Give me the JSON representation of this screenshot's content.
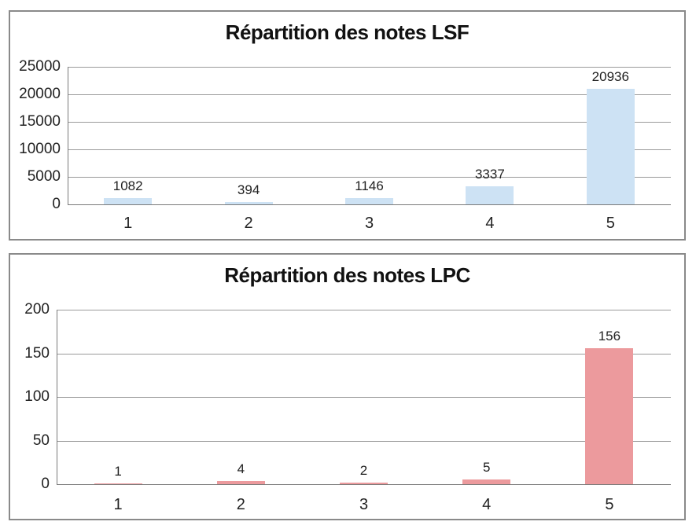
{
  "page": {
    "background": "#ffffff"
  },
  "colors": {
    "panel_border": "#8a8a8a",
    "gridline": "#9a9a9a",
    "axis_line": "#7a7a7a",
    "label_text": "#222222",
    "title_text": "#111111",
    "lsf_bar_fill": "#cde2f4",
    "lpc_bar_fill": "#ec9a9d"
  },
  "chart_data": [
    {
      "type": "bar",
      "title": "Répartition des notes LSF",
      "categories": [
        "1",
        "2",
        "3",
        "4",
        "5"
      ],
      "values": [
        1082,
        394,
        1146,
        3337,
        20936
      ],
      "data_labels": [
        "1082",
        "394",
        "1146",
        "3337",
        "20936"
      ],
      "xlabel": "",
      "ylabel": "",
      "ylim": [
        0,
        25000
      ],
      "y_ticks": [
        0,
        5000,
        10000,
        15000,
        20000,
        25000
      ],
      "grid": true,
      "legend": "none",
      "bar_color": "#cde2f4"
    },
    {
      "type": "bar",
      "title": "Répartition des notes LPC",
      "categories": [
        "1",
        "2",
        "3",
        "4",
        "5"
      ],
      "values": [
        1,
        4,
        2,
        5,
        156
      ],
      "data_labels": [
        "1",
        "4",
        "2",
        "5",
        "156"
      ],
      "xlabel": "",
      "ylabel": "",
      "ylim": [
        0,
        200
      ],
      "y_ticks": [
        0,
        50,
        100,
        150,
        200
      ],
      "grid": true,
      "legend": "none",
      "bar_color": "#ec9a9d"
    }
  ]
}
